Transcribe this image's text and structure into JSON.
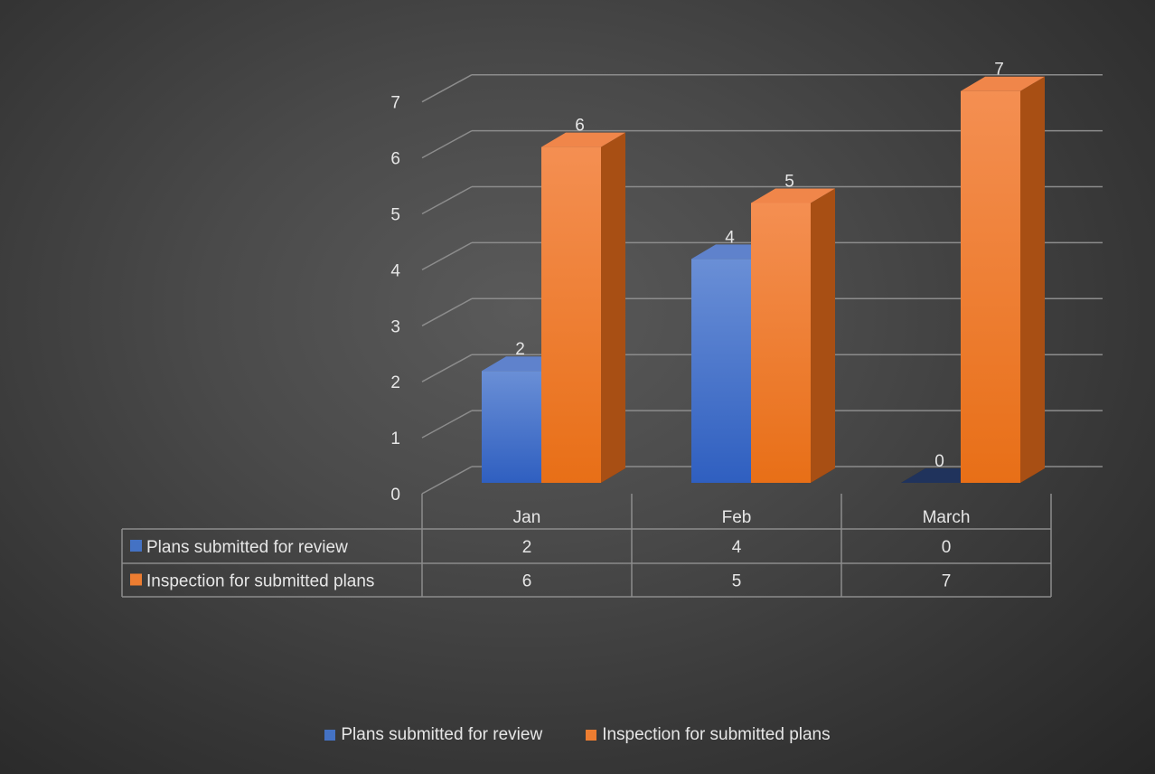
{
  "chart_data": {
    "type": "bar",
    "style": "3d-clustered-column-with-data-table",
    "categories": [
      "Jan",
      "Feb",
      "March"
    ],
    "series": [
      {
        "name": "Plans submitted for review",
        "values": [
          2,
          4,
          0
        ],
        "color": "#4472C4"
      },
      {
        "name": "Inspection for submitted plans",
        "values": [
          6,
          5,
          7
        ],
        "color": "#ED7D31"
      }
    ],
    "title": "",
    "xlabel": "",
    "ylabel": "",
    "ylim": [
      0,
      7
    ],
    "yticks": [
      0,
      1,
      2,
      3,
      4,
      5,
      6,
      7
    ],
    "grid": true,
    "data_labels": true,
    "data_table": true,
    "legend_position": "bottom"
  },
  "colors": {
    "background": "#474747",
    "gridline": "#8c8c8c",
    "text": "#e6e6e6"
  }
}
